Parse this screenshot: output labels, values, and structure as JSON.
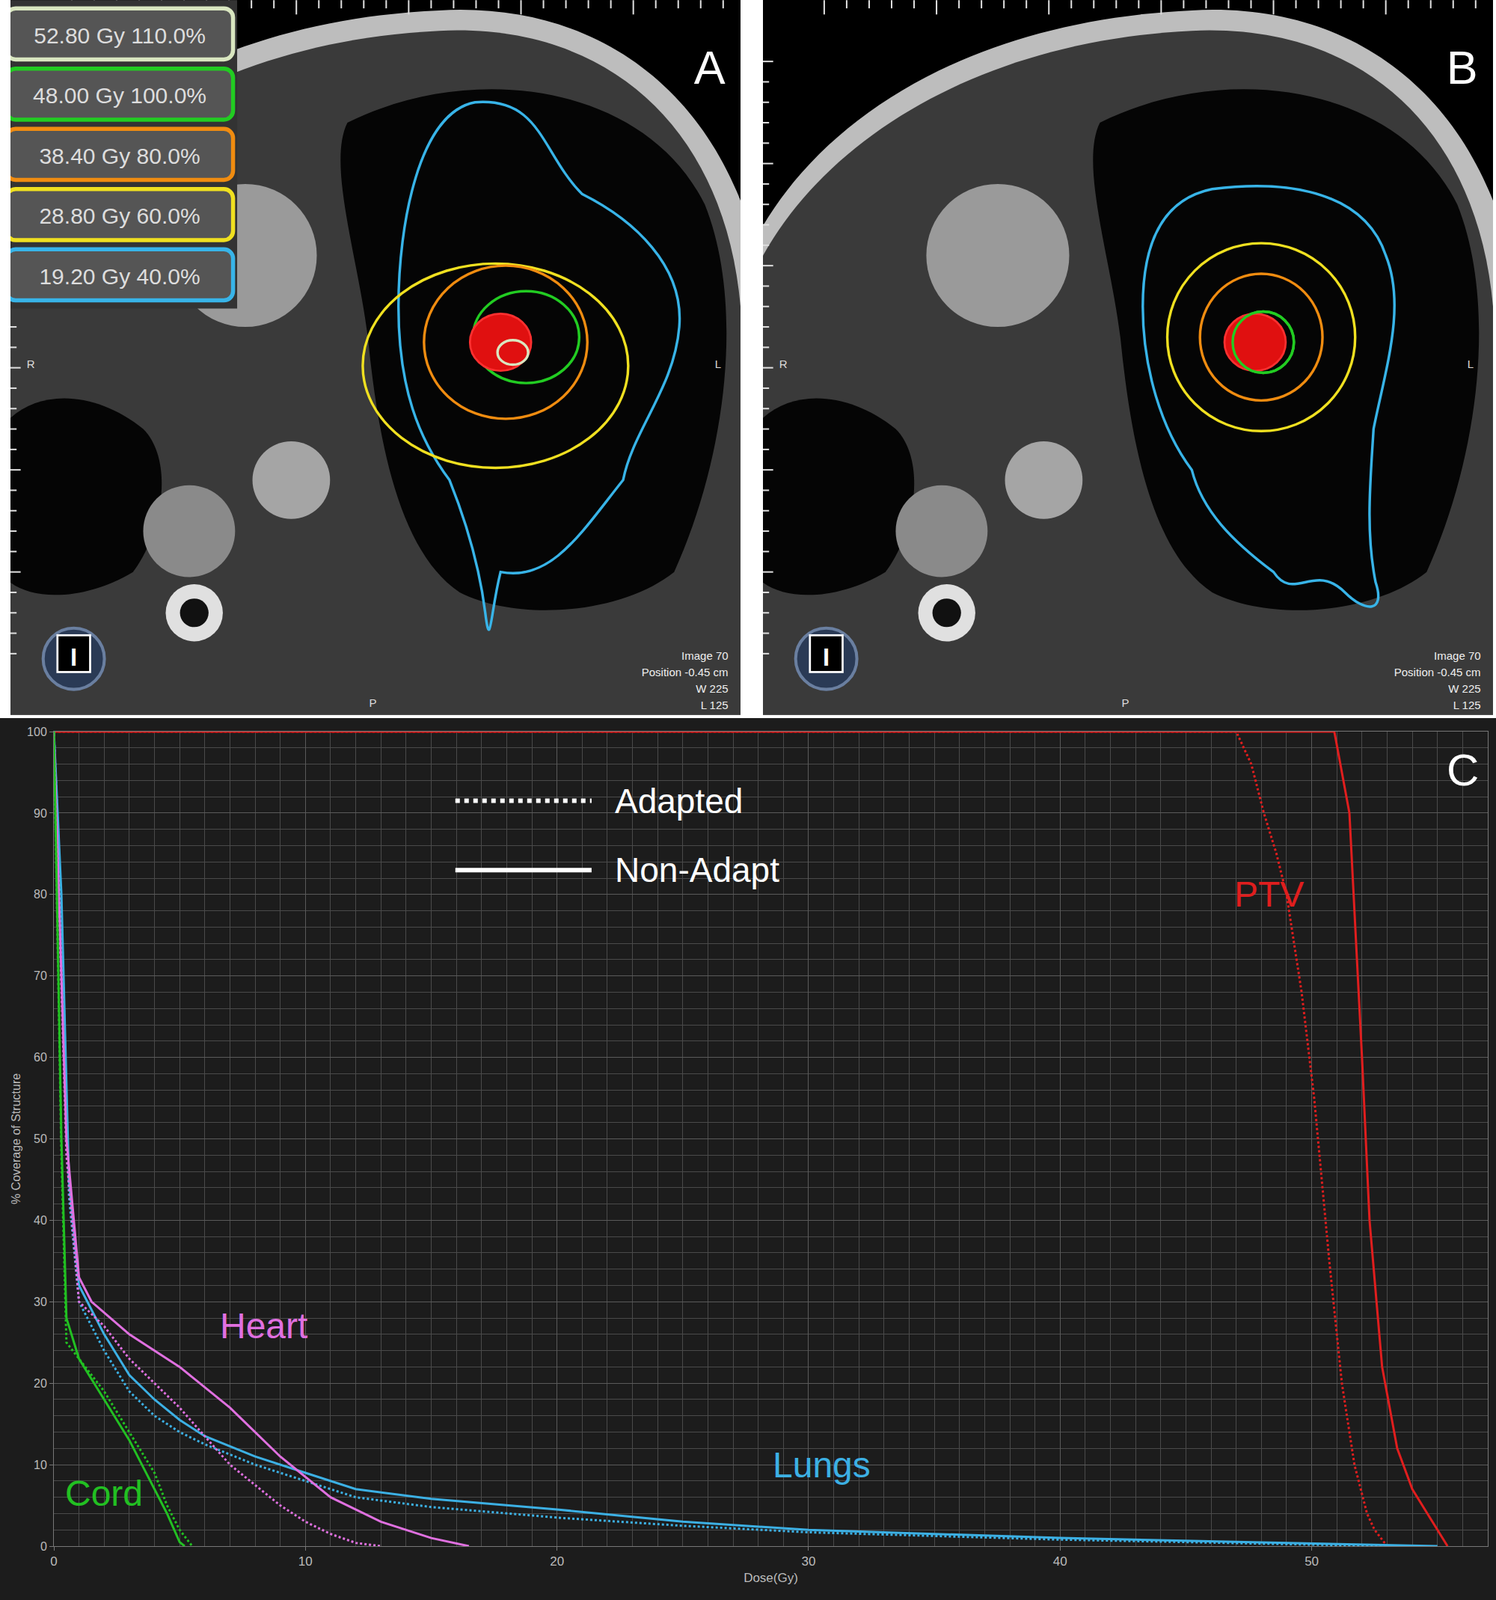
{
  "isodose_legend": [
    {
      "dose": "52.80 Gy",
      "percent": "110.0%",
      "color": "#d9e6c0"
    },
    {
      "dose": "48.00 Gy",
      "percent": "100.0%",
      "color": "#22cc22"
    },
    {
      "dose": "38.40 Gy",
      "percent": "80.0%",
      "color": "#f08c10"
    },
    {
      "dose": "28.80 Gy",
      "percent": "60.0%",
      "color": "#f0e020"
    },
    {
      "dose": "19.20 Gy",
      "percent": "40.0%",
      "color": "#38b4e8"
    }
  ],
  "image_panels": [
    {
      "label": "A",
      "info": [
        "Image 70",
        "Position -0.45 cm",
        "W 225",
        "L 125"
      ],
      "orientation": [
        "R",
        "L",
        "P"
      ],
      "icon": "I"
    },
    {
      "label": "B",
      "info": [
        "Image 70",
        "Position -0.45 cm",
        "W 225",
        "L 125"
      ],
      "orientation": [
        "R",
        "L",
        "P"
      ],
      "icon": "I"
    }
  ],
  "chart_data": {
    "type": "line",
    "panel": "C",
    "x_label": "Dose(Gy)",
    "y_label": "% Coverage of Structure",
    "xlim": [
      0,
      57
    ],
    "xticks": [
      0,
      10,
      20,
      30,
      40,
      50
    ],
    "ylim": [
      0,
      100
    ],
    "yticks": [
      0,
      10,
      20,
      30,
      40,
      50,
      60,
      70,
      80,
      90,
      100
    ],
    "grid": true,
    "line_styles": [
      {
        "label": "Adapted",
        "line_style": "dotted"
      },
      {
        "label": "Non-Adapt",
        "line_style": "solid"
      }
    ],
    "series": [
      {
        "name": "PTV",
        "color": "#e01e1e",
        "line_style": "solid",
        "x": [
          0,
          50.9,
          51.5,
          52.0,
          52.3,
          52.8,
          53.4,
          54.0,
          54.6,
          55.0,
          55.4
        ],
        "values": [
          100,
          100,
          90,
          60,
          40,
          22,
          12,
          7,
          4,
          2,
          0
        ]
      },
      {
        "name": "PTV",
        "color": "#e01e1e",
        "line_style": "dotted",
        "x": [
          0,
          47.0,
          47.6,
          48.1,
          48.6,
          49.0,
          49.6,
          50.1,
          50.7,
          51.2,
          51.7,
          52.2,
          52.5,
          53.0
        ],
        "values": [
          100,
          100,
          96,
          90,
          85,
          80,
          68,
          55,
          35,
          20,
          10,
          4,
          2,
          0
        ]
      },
      {
        "name": "Lungs",
        "color": "#3cb0e4",
        "line_style": "solid",
        "x": [
          0,
          0.3,
          0.6,
          1,
          2,
          3,
          4,
          5,
          6,
          8,
          10,
          12,
          15,
          20,
          25,
          30,
          40,
          50,
          55
        ],
        "values": [
          100,
          80,
          45,
          32,
          26,
          21,
          18,
          15.5,
          13.5,
          11,
          9,
          7,
          5.8,
          4.5,
          3,
          2,
          1,
          0.3,
          0
        ]
      },
      {
        "name": "Lungs",
        "color": "#3cb0e4",
        "line_style": "dotted",
        "x": [
          0,
          0.3,
          0.6,
          1,
          2,
          3,
          4,
          5,
          6,
          8,
          10,
          12,
          15,
          20,
          25,
          30,
          40,
          50,
          53
        ],
        "values": [
          100,
          78,
          43,
          30,
          24,
          19,
          16,
          14,
          12.5,
          10,
          8,
          6,
          4.8,
          3.5,
          2.5,
          1.7,
          0.8,
          0.2,
          0
        ]
      },
      {
        "name": "Heart",
        "color": "#e070e0",
        "line_style": "solid",
        "x": [
          0,
          0.5,
          1,
          1.5,
          3,
          5,
          7,
          9,
          11,
          13,
          15,
          16.5
        ],
        "values": [
          100,
          50,
          33,
          30,
          26,
          22,
          17,
          11,
          6,
          3,
          1,
          0
        ]
      },
      {
        "name": "Heart",
        "color": "#e070e0",
        "line_style": "dotted",
        "x": [
          0,
          0.5,
          1,
          2,
          3,
          5,
          7,
          9,
          10,
          11,
          12,
          13
        ],
        "values": [
          100,
          48,
          30,
          27,
          23,
          17,
          10,
          5,
          3,
          1.5,
          0.4,
          0
        ]
      },
      {
        "name": "Cord",
        "color": "#22c022",
        "line_style": "solid",
        "x": [
          0,
          0.3,
          0.5,
          1,
          2,
          3,
          3.5,
          4,
          4.5,
          5,
          5.2
        ],
        "values": [
          100,
          50,
          28,
          23,
          18,
          13,
          10,
          7,
          4,
          0.5,
          0
        ]
      },
      {
        "name": "Cord",
        "color": "#22c022",
        "line_style": "dotted",
        "x": [
          0,
          0.3,
          0.5,
          1,
          2,
          3,
          4,
          4.5,
          5,
          5.5
        ],
        "values": [
          100,
          48,
          25,
          23,
          19,
          14,
          9,
          5,
          2,
          0
        ]
      }
    ]
  }
}
